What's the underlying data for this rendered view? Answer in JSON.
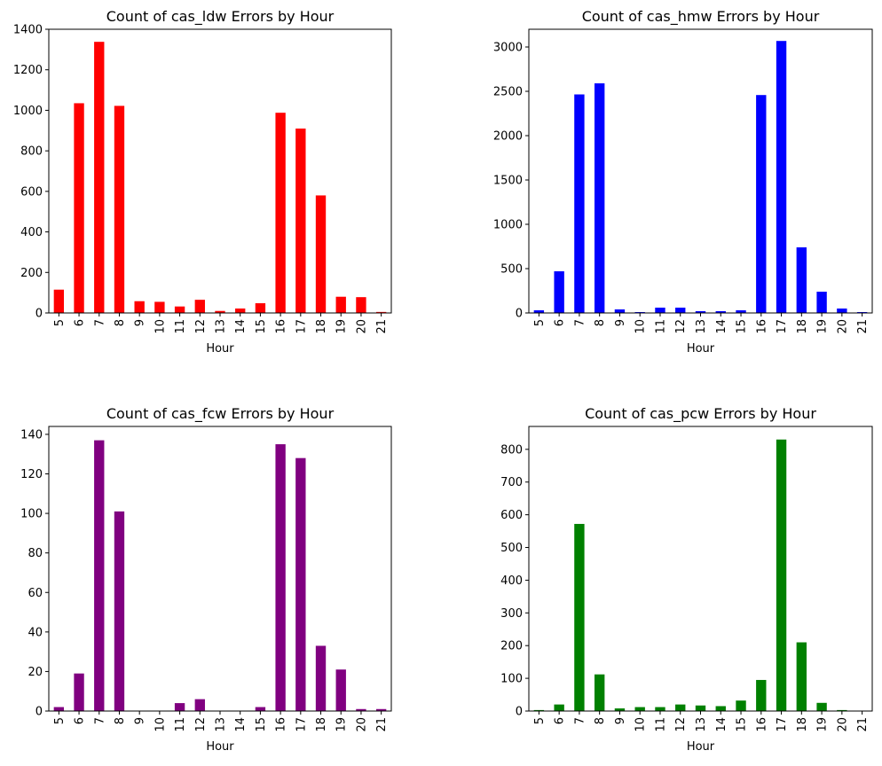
{
  "chart_data": [
    {
      "type": "bar",
      "title": "Count of cas_ldw Errors by Hour",
      "xlabel": "Hour",
      "ylabel": "",
      "color": "#ff0000",
      "categories": [
        "5",
        "6",
        "7",
        "8",
        "9",
        "10",
        "11",
        "12",
        "13",
        "14",
        "15",
        "16",
        "17",
        "18",
        "19",
        "20",
        "21"
      ],
      "values": [
        115,
        1035,
        1338,
        1022,
        58,
        55,
        32,
        65,
        10,
        22,
        48,
        988,
        910,
        580,
        80,
        78,
        5
      ],
      "ylim": [
        0,
        1400
      ],
      "yticks": [
        0,
        200,
        400,
        600,
        800,
        1000,
        1200,
        1400
      ]
    },
    {
      "type": "bar",
      "title": "Count of cas_hmw Errors by Hour",
      "xlabel": "Hour",
      "ylabel": "",
      "color": "#0000ff",
      "categories": [
        "5",
        "6",
        "7",
        "8",
        "9",
        "10",
        "11",
        "12",
        "13",
        "14",
        "15",
        "16",
        "17",
        "18",
        "19",
        "20",
        "21"
      ],
      "values": [
        30,
        470,
        2465,
        2590,
        40,
        10,
        60,
        60,
        20,
        20,
        30,
        2458,
        3068,
        740,
        240,
        50,
        10
      ],
      "ylim": [
        0,
        3200
      ],
      "yticks": [
        0,
        500,
        1000,
        1500,
        2000,
        2500,
        3000
      ]
    },
    {
      "type": "bar",
      "title": "Count of cas_fcw Errors by Hour",
      "xlabel": "Hour",
      "ylabel": "",
      "color": "#800080",
      "categories": [
        "5",
        "6",
        "7",
        "8",
        "9",
        "10",
        "11",
        "12",
        "13",
        "14",
        "15",
        "16",
        "17",
        "18",
        "19",
        "20",
        "21"
      ],
      "values": [
        2,
        19,
        137,
        101,
        0,
        0,
        4,
        6,
        0,
        0,
        2,
        135,
        128,
        33,
        21,
        1,
        1
      ],
      "ylim": [
        0,
        144
      ],
      "yticks": [
        0,
        20,
        40,
        60,
        80,
        100,
        120,
        140
      ]
    },
    {
      "type": "bar",
      "title": "Count of cas_pcw Errors by Hour",
      "xlabel": "Hour",
      "ylabel": "",
      "color": "#008000",
      "categories": [
        "5",
        "6",
        "7",
        "8",
        "9",
        "10",
        "11",
        "12",
        "13",
        "14",
        "15",
        "16",
        "17",
        "18",
        "19",
        "20",
        "21"
      ],
      "values": [
        3,
        20,
        572,
        112,
        8,
        12,
        12,
        20,
        17,
        15,
        32,
        95,
        830,
        210,
        25,
        3,
        1
      ],
      "ylim": [
        0,
        870
      ],
      "yticks": [
        0,
        100,
        200,
        300,
        400,
        500,
        600,
        700,
        800
      ]
    }
  ]
}
